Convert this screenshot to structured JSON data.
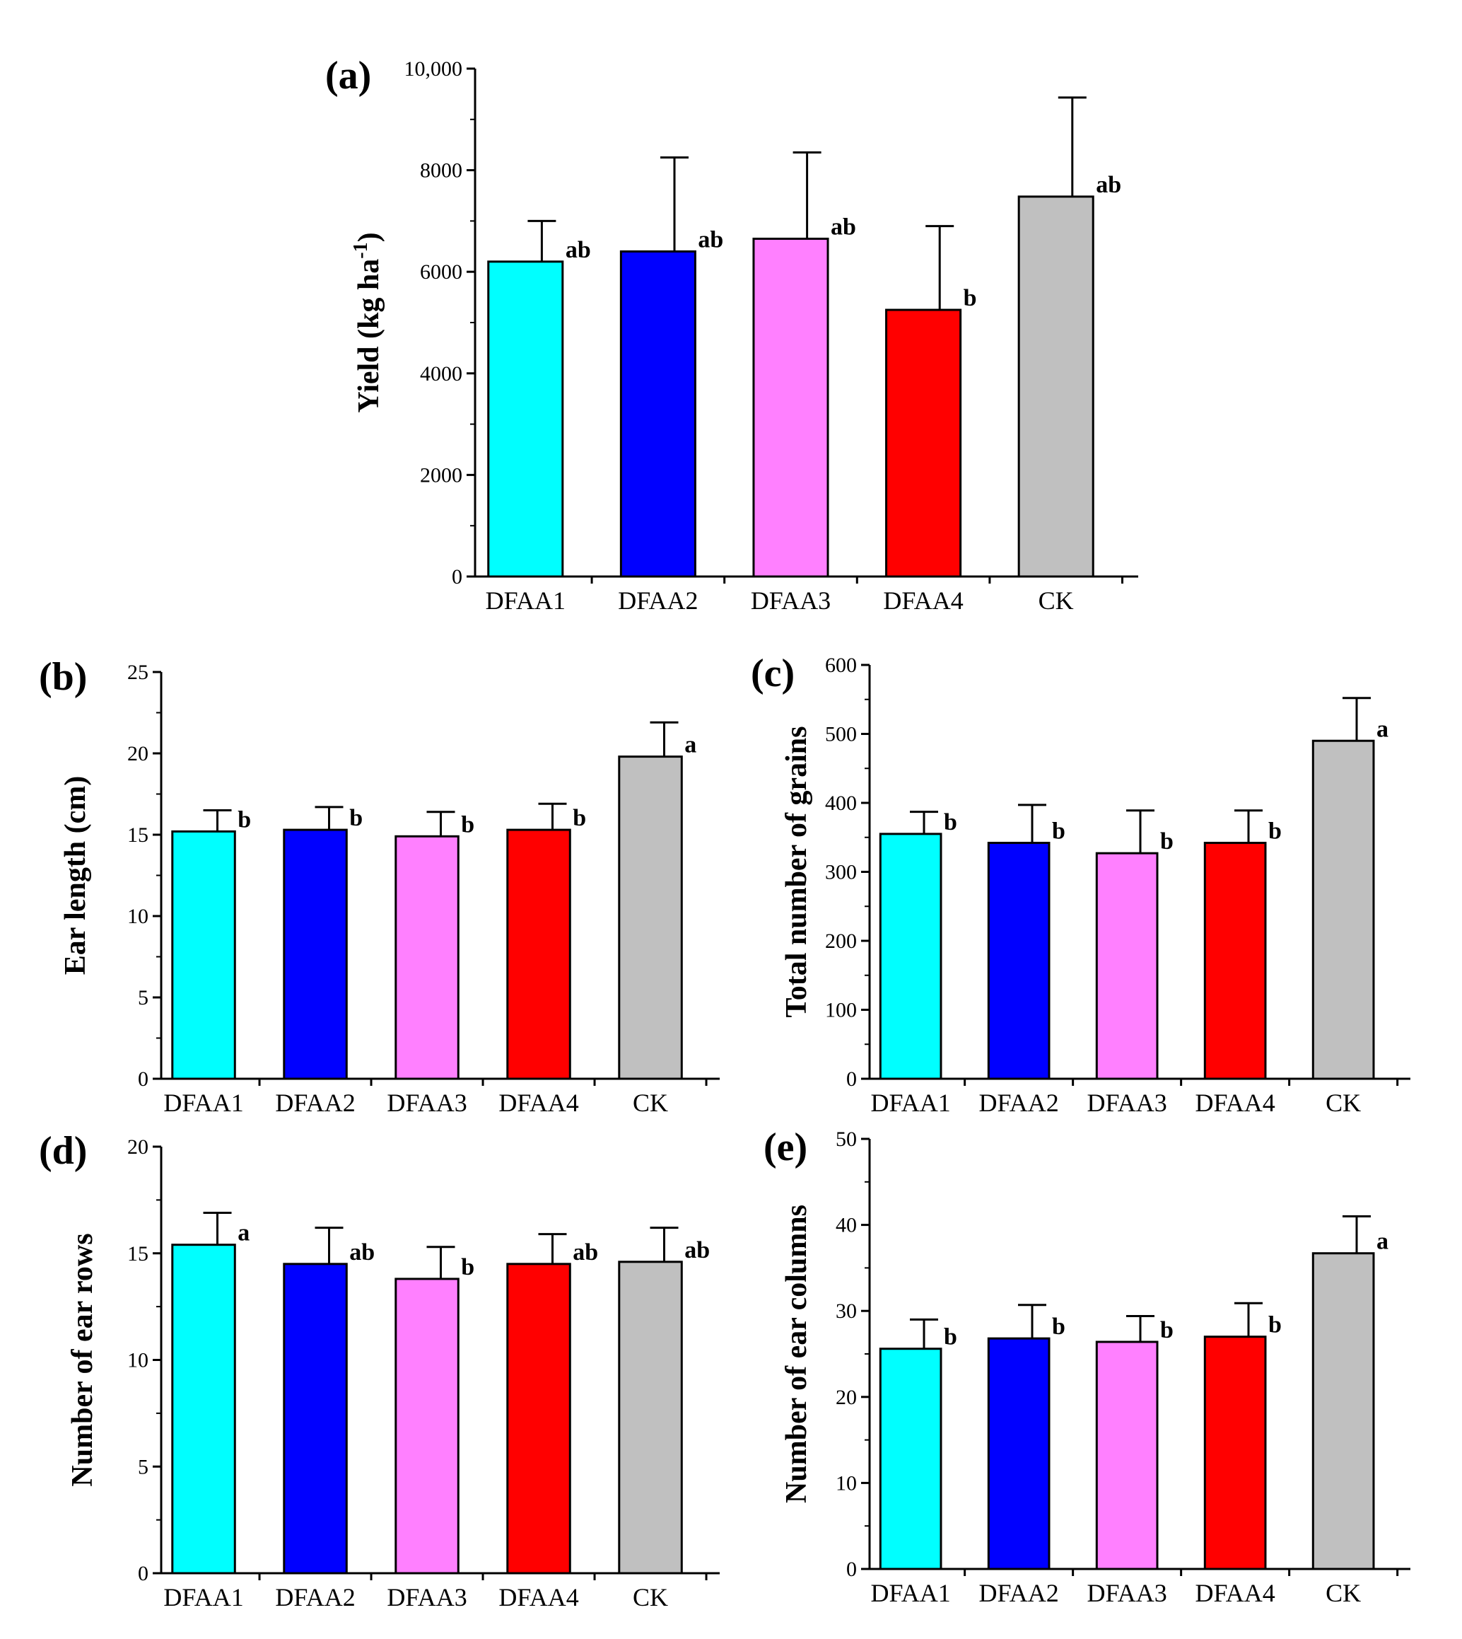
{
  "chart_data": [
    {
      "type": "bar",
      "panel": "(a)",
      "ylabel": "Yield (kg ha",
      "ylabel_sup": "-1",
      "ylabel_close": ")",
      "categories": [
        "DFAA1",
        "DFAA2",
        "DFAA3",
        "DFAA4",
        "CK"
      ],
      "values": [
        6200,
        6400,
        6650,
        5250,
        7480
      ],
      "errors": [
        800,
        1850,
        1700,
        1650,
        1950
      ],
      "letters": [
        "ab",
        "ab",
        "ab",
        "b",
        "ab"
      ],
      "ylim": [
        0,
        10000
      ],
      "yticks": [
        0,
        2000,
        4000,
        6000,
        8000,
        10000
      ],
      "ytick_labels": [
        "0",
        "2000",
        "4000",
        "6000",
        "8000",
        "10,000"
      ],
      "colors": [
        "#00FFFF",
        "#0000FF",
        "#FF80FF",
        "#FF0000",
        "#C0C0C0"
      ]
    },
    {
      "type": "bar",
      "panel": "(b)",
      "ylabel": "Ear length (cm)",
      "categories": [
        "DFAA1",
        "DFAA2",
        "DFAA3",
        "DFAA4",
        "CK"
      ],
      "values": [
        15.2,
        15.3,
        14.9,
        15.3,
        19.8
      ],
      "errors": [
        1.3,
        1.4,
        1.5,
        1.6,
        2.1
      ],
      "letters": [
        "b",
        "b",
        "b",
        "b",
        "a"
      ],
      "ylim": [
        0,
        25
      ],
      "yticks": [
        0,
        5,
        10,
        15,
        20,
        25
      ],
      "ytick_labels": [
        "0",
        "5",
        "10",
        "15",
        "20",
        "25"
      ],
      "colors": [
        "#00FFFF",
        "#0000FF",
        "#FF80FF",
        "#FF0000",
        "#C0C0C0"
      ]
    },
    {
      "type": "bar",
      "panel": "(c)",
      "ylabel": "Total number of grains",
      "categories": [
        "DFAA1",
        "DFAA2",
        "DFAA3",
        "DFAA4",
        "CK"
      ],
      "values": [
        355,
        342,
        327,
        342,
        490
      ],
      "errors": [
        32,
        55,
        62,
        47,
        62
      ],
      "letters": [
        "b",
        "b",
        "b",
        "b",
        "a"
      ],
      "ylim": [
        0,
        600
      ],
      "yticks": [
        0,
        100,
        200,
        300,
        400,
        500,
        600
      ],
      "ytick_labels": [
        "0",
        "100",
        "200",
        "300",
        "400",
        "500",
        "600"
      ],
      "colors": [
        "#00FFFF",
        "#0000FF",
        "#FF80FF",
        "#FF0000",
        "#C0C0C0"
      ]
    },
    {
      "type": "bar",
      "panel": "(d)",
      "ylabel": "Number of ear rows",
      "categories": [
        "DFAA1",
        "DFAA2",
        "DFAA3",
        "DFAA4",
        "CK"
      ],
      "values": [
        15.4,
        14.5,
        13.8,
        14.5,
        14.6
      ],
      "errors": [
        1.5,
        1.7,
        1.5,
        1.4,
        1.6
      ],
      "letters": [
        "a",
        "ab",
        "b",
        "ab",
        "ab"
      ],
      "ylim": [
        0,
        20
      ],
      "yticks": [
        0,
        5,
        10,
        15,
        20
      ],
      "ytick_labels": [
        "0",
        "5",
        "10",
        "15",
        "20"
      ],
      "colors": [
        "#00FFFF",
        "#0000FF",
        "#FF80FF",
        "#FF0000",
        "#C0C0C0"
      ]
    },
    {
      "type": "bar",
      "panel": "(e)",
      "ylabel": "Number of ear columns",
      "categories": [
        "DFAA1",
        "DFAA2",
        "DFAA3",
        "DFAA4",
        "CK"
      ],
      "values": [
        25.6,
        26.8,
        26.4,
        27.0,
        36.7
      ],
      "errors": [
        3.4,
        3.9,
        3.0,
        3.9,
        4.3
      ],
      "letters": [
        "b",
        "b",
        "b",
        "b",
        "a"
      ],
      "ylim": [
        0,
        50
      ],
      "yticks": [
        0,
        10,
        20,
        30,
        40,
        50
      ],
      "ytick_labels": [
        "0",
        "10",
        "20",
        "30",
        "40",
        "50"
      ],
      "colors": [
        "#00FFFF",
        "#0000FF",
        "#FF80FF",
        "#FF0000",
        "#C0C0C0"
      ]
    }
  ]
}
